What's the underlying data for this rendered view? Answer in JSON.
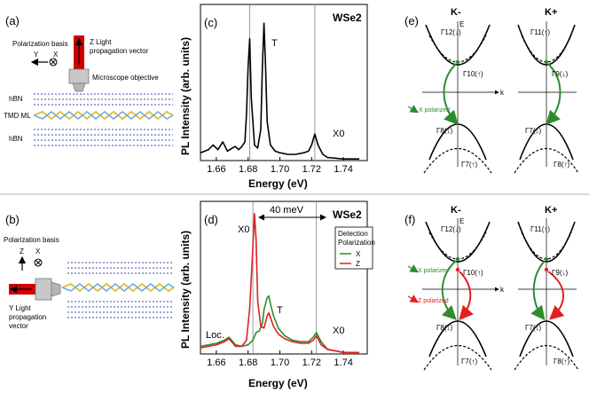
{
  "figure": {
    "panel_a": {
      "label": "(a)",
      "axis_y": "Y",
      "axis_x": "X",
      "basis": "Polarization basis",
      "z_light_1": "Z Light",
      "z_light_2": "propagation vector",
      "objective": "Microscope objective",
      "hbn_top": "hBN",
      "tmd": "TMD ML",
      "hbn_bottom": "hBN"
    },
    "panel_b": {
      "label": "(b)",
      "basis": "Polarization basis",
      "axis_z": "Z",
      "axis_x": "X",
      "y_light_1": "Y Light",
      "y_light_2": "propagation",
      "y_light_3": "vector"
    },
    "panel_e": {
      "label": "(e)",
      "valley_left": "K-",
      "valley_right": "K+",
      "x_polarized": "X polarized"
    },
    "panel_f": {
      "label": "(f)",
      "valley_left": "K-",
      "valley_right": "K+",
      "x_polarized": "X polarized",
      "z_polarized": "Z polarized"
    },
    "gammas": {
      "g12": "Γ12(↓)",
      "g10": "Γ10(↑)",
      "g8": "Γ8(↓)",
      "g7": "Γ7(↑)",
      "g11": "Γ11(↑)",
      "g9": "Γ9(↓)",
      "g7p": "Γ7(↓)",
      "g8p": "Γ8(↑)",
      "E": "E",
      "k": "k"
    },
    "colors": {
      "green": "#2e8b2e",
      "red": "#e02020",
      "wse2_chem": "WSe2"
    }
  },
  "chart_data": [
    {
      "type": "line",
      "panel": "(c)",
      "title": "WSe2",
      "xlabel": "Energy (eV)",
      "ylabel": "PL Intensity (arb. units)",
      "xlim": [
        1.65,
        1.755
      ],
      "ylim": [
        0,
        1
      ],
      "xticks": [
        "1.66",
        "1.68",
        "1.70",
        "1.72",
        "1.74"
      ],
      "vlines": [
        1.681,
        1.722
      ],
      "annotations": [
        "T",
        "X0"
      ],
      "series": [
        {
          "color": "#000000",
          "x": [
            1.65,
            1.655,
            1.658,
            1.661,
            1.664,
            1.667,
            1.67,
            1.672,
            1.674,
            1.676,
            1.678,
            1.679,
            1.68,
            1.681,
            1.682,
            1.684,
            1.686,
            1.688,
            1.689,
            1.69,
            1.691,
            1.692,
            1.694,
            1.697,
            1.7,
            1.705,
            1.71,
            1.715,
            1.718,
            1.72,
            1.722,
            1.724,
            1.727,
            1.73,
            1.74,
            1.75
          ],
          "y": [
            0.05,
            0.07,
            0.1,
            0.07,
            0.12,
            0.06,
            0.08,
            0.09,
            0.07,
            0.09,
            0.12,
            0.3,
            0.6,
            0.78,
            0.4,
            0.1,
            0.08,
            0.2,
            0.6,
            0.88,
            0.6,
            0.25,
            0.1,
            0.06,
            0.05,
            0.04,
            0.04,
            0.05,
            0.06,
            0.1,
            0.17,
            0.1,
            0.04,
            0.02,
            0.01,
            0.01
          ]
        }
      ]
    },
    {
      "type": "line",
      "panel": "(d)",
      "title": "WSe2",
      "xlabel": "Energy (eV)",
      "ylabel": "PL Intensity (arb. units)",
      "xlim": [
        1.65,
        1.755
      ],
      "ylim": [
        0,
        1
      ],
      "xticks": [
        "1.66",
        "1.68",
        "1.70",
        "1.72",
        "1.74"
      ],
      "vlines": [
        1.683,
        1.723
      ],
      "annotations": [
        "X0",
        "40 meV",
        "T",
        "X0",
        "Loc."
      ],
      "legend_title_1": "Detection",
      "legend_title_2": "Polarization",
      "series": [
        {
          "name": "X",
          "color": "#2e8b2e",
          "x": [
            1.65,
            1.655,
            1.66,
            1.665,
            1.668,
            1.672,
            1.676,
            1.68,
            1.683,
            1.685,
            1.687,
            1.689,
            1.69,
            1.692,
            1.693,
            1.694,
            1.696,
            1.699,
            1.703,
            1.708,
            1.713,
            1.718,
            1.721,
            1.723,
            1.726,
            1.73,
            1.74,
            1.75
          ],
          "y": [
            0.05,
            0.06,
            0.07,
            0.09,
            0.11,
            0.06,
            0.05,
            0.06,
            0.09,
            0.14,
            0.15,
            0.2,
            0.29,
            0.37,
            0.38,
            0.33,
            0.25,
            0.17,
            0.12,
            0.09,
            0.08,
            0.08,
            0.11,
            0.14,
            0.08,
            0.03,
            0.01,
            0.01
          ]
        },
        {
          "name": "Z",
          "color": "#e02020",
          "x": [
            1.65,
            1.655,
            1.66,
            1.665,
            1.668,
            1.672,
            1.676,
            1.679,
            1.681,
            1.683,
            1.684,
            1.685,
            1.686,
            1.688,
            1.69,
            1.692,
            1.693,
            1.694,
            1.696,
            1.699,
            1.703,
            1.708,
            1.713,
            1.718,
            1.721,
            1.723,
            1.726,
            1.73,
            1.74,
            1.75
          ],
          "y": [
            0.04,
            0.05,
            0.06,
            0.08,
            0.1,
            0.05,
            0.05,
            0.09,
            0.3,
            0.7,
            0.92,
            0.75,
            0.35,
            0.18,
            0.17,
            0.25,
            0.27,
            0.24,
            0.18,
            0.13,
            0.1,
            0.08,
            0.07,
            0.07,
            0.09,
            0.12,
            0.06,
            0.03,
            0.01,
            0.01
          ]
        }
      ]
    }
  ]
}
